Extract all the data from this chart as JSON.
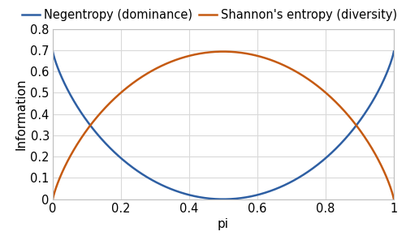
{
  "title": "",
  "xlabel": "pi",
  "ylabel": "Information",
  "xlim": [
    0,
    1
  ],
  "ylim": [
    0,
    0.8
  ],
  "xticks": [
    0,
    0.2,
    0.4,
    0.6,
    0.8,
    1
  ],
  "yticks": [
    0,
    0.1,
    0.2,
    0.3,
    0.4,
    0.5,
    0.6,
    0.7,
    0.8
  ],
  "negentropy_color": "#2e5fa3",
  "entropy_color": "#c55a11",
  "negentropy_label": "Negentropy (dominance)",
  "entropy_label": "Shannon's entropy (diversity)",
  "line_width": 1.8,
  "background_color": "#ffffff",
  "grid_color": "#d9d9d9",
  "axes_edge_color": "#bfbfbf",
  "tick_label_fontsize": 10.5,
  "axis_label_fontsize": 11,
  "legend_fontsize": 10.5
}
